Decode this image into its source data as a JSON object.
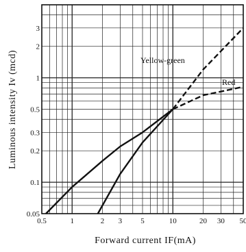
{
  "chart_data": {
    "type": "line",
    "xlabel": "Forward current IF(mA)",
    "ylabel": "Luminous intensity Iv (mcd)",
    "x_scale": "log",
    "y_scale": "log",
    "xlim": [
      0.5,
      50
    ],
    "ylim": [
      0.05,
      5
    ],
    "x_ticks": [
      {
        "value": 0.5,
        "label": "0.5"
      },
      {
        "value": 1,
        "label": "1"
      },
      {
        "value": 2,
        "label": "2"
      },
      {
        "value": 3,
        "label": "3"
      },
      {
        "value": 5,
        "label": "5"
      },
      {
        "value": 10,
        "label": "10"
      },
      {
        "value": 20,
        "label": "20"
      },
      {
        "value": 30,
        "label": "30"
      },
      {
        "value": 50,
        "label": "50"
      }
    ],
    "y_ticks": [
      {
        "value": 0.05,
        "label": "0.05"
      },
      {
        "value": 0.1,
        "label": "0.1"
      },
      {
        "value": 0.2,
        "label": "0.2"
      },
      {
        "value": 0.3,
        "label": "0.3"
      },
      {
        "value": 0.5,
        "label": "0.5"
      },
      {
        "value": 1,
        "label": "1"
      },
      {
        "value": 2,
        "label": "2"
      },
      {
        "value": 3,
        "label": "3"
      }
    ],
    "grid": true,
    "series": [
      {
        "name": "Yellow-green",
        "color": "#111111",
        "x": [
          1.8,
          3,
          5,
          10
        ],
        "y": [
          0.05,
          0.12,
          0.24,
          0.5
        ],
        "x_extrapolated": [
          10,
          20,
          50
        ],
        "y_extrapolated": [
          0.5,
          1.2,
          3.0
        ]
      },
      {
        "name": "Red",
        "color": "#111111",
        "x": [
          0.55,
          1,
          2,
          3,
          5,
          10
        ],
        "y": [
          0.05,
          0.09,
          0.16,
          0.22,
          0.3,
          0.5
        ],
        "x_extrapolated": [
          10,
          20,
          50
        ],
        "y_extrapolated": [
          0.5,
          0.68,
          0.82
        ]
      }
    ]
  }
}
